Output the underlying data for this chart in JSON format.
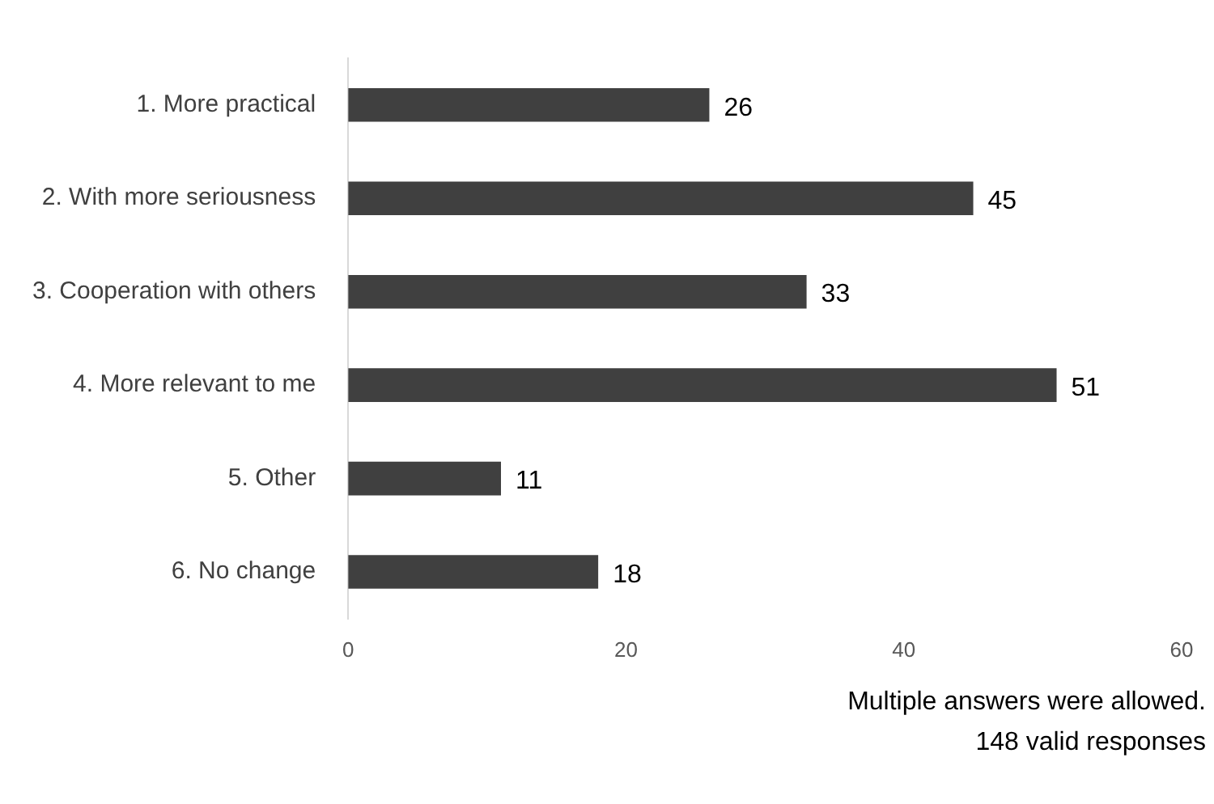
{
  "chart_data": {
    "type": "bar",
    "orientation": "horizontal",
    "categories": [
      "1. More practical",
      "2. With more seriousness",
      "3. Cooperation with others",
      "4. More relevant to me",
      "5. Other",
      "6. No change"
    ],
    "values": [
      26,
      45,
      33,
      51,
      11,
      18
    ],
    "color": "#404040",
    "xlim": [
      0,
      60
    ],
    "xticks": [
      0,
      20,
      40,
      60
    ],
    "grid": false,
    "data_labels": true,
    "annotations": [
      "Multiple answers were allowed.",
      "148 valid responses"
    ]
  }
}
